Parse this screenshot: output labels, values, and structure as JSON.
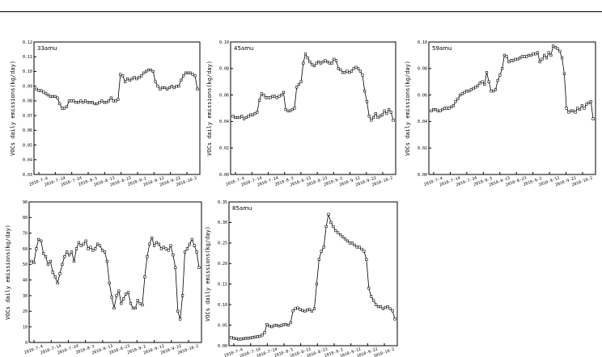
{
  "chart_data": [
    {
      "type": "line",
      "tag": "33amu",
      "ylabel": "VOCs daily emissions(kg/day)",
      "ylim": [
        0.03,
        0.12
      ],
      "yticks": [
        0.03,
        0.04,
        0.05,
        0.06,
        0.07,
        0.08,
        0.09,
        0.1,
        0.11,
        0.12
      ],
      "ytick_labels": [
        "0.03",
        "0.04",
        "0.05",
        "0.06",
        "0.07",
        "0.08",
        "0.09",
        "0.10",
        "0.11",
        "0.12"
      ],
      "xtick_labels": [
        "2010-7-4",
        "2010-7-14",
        "2010-7-24",
        "2010-8-3",
        "2010-8-13",
        "2010-8-23",
        "2010-9-2",
        "2010-9-12",
        "2010-9-22",
        "2010-10-2"
      ],
      "y": [
        0.088,
        0.087,
        0.087,
        0.086,
        0.085,
        0.084,
        0.083,
        0.083,
        0.083,
        0.082,
        0.078,
        0.075,
        0.075,
        0.076,
        0.08,
        0.08,
        0.08,
        0.079,
        0.079,
        0.08,
        0.079,
        0.08,
        0.079,
        0.079,
        0.079,
        0.078,
        0.078,
        0.079,
        0.08,
        0.079,
        0.079,
        0.08,
        0.082,
        0.08,
        0.08,
        0.081,
        0.098,
        0.097,
        0.093,
        0.095,
        0.094,
        0.095,
        0.096,
        0.095,
        0.096,
        0.097,
        0.099,
        0.1,
        0.101,
        0.101,
        0.1,
        0.093,
        0.09,
        0.088,
        0.089,
        0.089,
        0.088,
        0.089,
        0.09,
        0.089,
        0.09,
        0.09,
        0.094,
        0.097,
        0.099,
        0.099,
        0.099,
        0.098,
        0.097,
        0.088
      ]
    },
    {
      "type": "line",
      "tag": "45amu",
      "ylabel": "VOCs daily emissions(kg/day)",
      "ylim": [
        0.0,
        0.1
      ],
      "yticks": [
        0.0,
        0.02,
        0.04,
        0.06,
        0.08,
        0.1
      ],
      "ytick_labels": [
        "0.00",
        "0.02",
        "0.04",
        "0.06",
        "0.08",
        "0.10"
      ],
      "xtick_labels": [
        "2010-7-4",
        "2010-7-14",
        "2010-7-24",
        "2010-8-3",
        "2010-8-13",
        "2010-8-23",
        "2010-9-2",
        "2010-9-12",
        "2010-9-22",
        "2010-10-2"
      ],
      "y": [
        0.044,
        0.043,
        0.043,
        0.043,
        0.044,
        0.042,
        0.043,
        0.044,
        0.045,
        0.045,
        0.046,
        0.047,
        0.056,
        0.061,
        0.06,
        0.058,
        0.058,
        0.058,
        0.059,
        0.059,
        0.058,
        0.059,
        0.06,
        0.062,
        0.049,
        0.048,
        0.048,
        0.049,
        0.05,
        0.066,
        0.068,
        0.07,
        0.084,
        0.091,
        0.088,
        0.085,
        0.083,
        0.082,
        0.084,
        0.085,
        0.084,
        0.085,
        0.086,
        0.085,
        0.084,
        0.084,
        0.087,
        0.086,
        0.08,
        0.079,
        0.077,
        0.077,
        0.078,
        0.077,
        0.078,
        0.08,
        0.081,
        0.08,
        0.078,
        0.075,
        0.063,
        0.055,
        0.044,
        0.041,
        0.043,
        0.046,
        0.043,
        0.044,
        0.045,
        0.048,
        0.046,
        0.049,
        0.047,
        0.041
      ]
    },
    {
      "type": "line",
      "tag": "59amu",
      "ylabel": "VOCs daily emissions(kg/day)",
      "ylim": [
        0.0,
        0.1
      ],
      "yticks": [
        0.0,
        0.02,
        0.04,
        0.06,
        0.08,
        0.1
      ],
      "ytick_labels": [
        "0.00",
        "0.02",
        "0.04",
        "0.06",
        "0.08",
        "0.10"
      ],
      "xtick_labels": [
        "2010-7-4",
        "2010-7-14",
        "2010-7-24",
        "2010-8-3",
        "2010-8-13",
        "2010-8-23",
        "2010-9-2",
        "2010-9-12",
        "2010-9-22",
        "2010-10-2"
      ],
      "y": [
        0.048,
        0.049,
        0.049,
        0.048,
        0.048,
        0.049,
        0.05,
        0.05,
        0.05,
        0.051,
        0.052,
        0.055,
        0.057,
        0.06,
        0.061,
        0.062,
        0.063,
        0.063,
        0.064,
        0.065,
        0.066,
        0.067,
        0.069,
        0.07,
        0.068,
        0.077,
        0.07,
        0.063,
        0.063,
        0.064,
        0.071,
        0.075,
        0.08,
        0.09,
        0.089,
        0.085,
        0.086,
        0.086,
        0.087,
        0.087,
        0.088,
        0.089,
        0.089,
        0.089,
        0.09,
        0.09,
        0.091,
        0.091,
        0.092,
        0.085,
        0.087,
        0.09,
        0.088,
        0.092,
        0.09,
        0.097,
        0.096,
        0.095,
        0.093,
        0.088,
        0.076,
        0.05,
        0.047,
        0.048,
        0.048,
        0.047,
        0.05,
        0.049,
        0.052,
        0.05,
        0.053,
        0.054,
        0.055,
        0.042
      ]
    },
    {
      "type": "line",
      "tag": "",
      "ylabel": "VOCs daily emissions(kg/day)",
      "ylim": [
        0,
        90
      ],
      "yticks": [
        0,
        10,
        20,
        30,
        40,
        50,
        60,
        70,
        80,
        90
      ],
      "ytick_labels": [
        "0",
        "10",
        "20",
        "30",
        "40",
        "50",
        "60",
        "70",
        "80",
        "90"
      ],
      "xtick_labels": [
        "2010-7-4",
        "2010-7-14",
        "2010-7-24",
        "2010-8-3",
        "2010-8-13",
        "2010-8-23",
        "2010-9-2",
        "2010-9-12",
        "2010-9-22",
        "2010-10-2"
      ],
      "y": [
        52,
        51,
        60,
        66,
        65,
        57,
        55,
        50,
        52,
        45,
        42,
        38,
        44,
        50,
        55,
        58,
        56,
        58,
        52,
        60,
        64,
        62,
        63,
        65,
        60,
        61,
        59,
        60,
        63,
        62,
        59,
        58,
        52,
        38,
        29,
        22,
        30,
        33,
        25,
        28,
        31,
        32,
        25,
        22,
        22,
        27,
        25,
        24,
        42,
        55,
        63,
        67,
        62,
        64,
        63,
        60,
        61,
        60,
        59,
        62,
        56,
        48,
        20,
        15,
        30,
        58,
        60,
        63,
        66,
        62,
        58,
        48
      ]
    },
    {
      "type": "line",
      "tag": "85amu",
      "ylabel": "VOCs daily emissions(kg/day)",
      "ylim": [
        0.0,
        0.35
      ],
      "yticks": [
        0.0,
        0.05,
        0.1,
        0.15,
        0.2,
        0.25,
        0.3,
        0.35
      ],
      "ytick_labels": [
        "0.00",
        "0.05",
        "0.10",
        "0.15",
        "0.20",
        "0.25",
        "0.30",
        "0.35"
      ],
      "xtick_labels": [
        "2010-7-4",
        "2010-7-14",
        "2010-7-24",
        "2010-8-3",
        "2010-8-13",
        "2010-8-23",
        "2010-9-2",
        "2010-9-12",
        "2010-9-22",
        "2010-10-2"
      ],
      "y": [
        0.02,
        0.018,
        0.017,
        0.016,
        0.016,
        0.017,
        0.018,
        0.018,
        0.019,
        0.02,
        0.021,
        0.022,
        0.023,
        0.026,
        0.032,
        0.052,
        0.048,
        0.046,
        0.049,
        0.05,
        0.048,
        0.049,
        0.051,
        0.052,
        0.05,
        0.056,
        0.085,
        0.09,
        0.092,
        0.088,
        0.086,
        0.084,
        0.087,
        0.088,
        0.084,
        0.09,
        0.15,
        0.21,
        0.23,
        0.24,
        0.29,
        0.32,
        0.3,
        0.29,
        0.28,
        0.275,
        0.27,
        0.265,
        0.26,
        0.255,
        0.25,
        0.25,
        0.245,
        0.24,
        0.24,
        0.235,
        0.23,
        0.21,
        0.14,
        0.12,
        0.11,
        0.1,
        0.095,
        0.095,
        0.09,
        0.093,
        0.095,
        0.09,
        0.085,
        0.065
      ]
    }
  ]
}
